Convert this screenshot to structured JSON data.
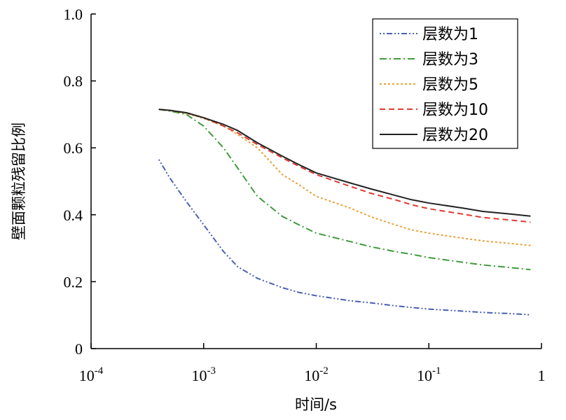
{
  "chart_data": {
    "type": "line",
    "xlabel": "时间/s",
    "ylabel": "壁面颗粒残留比例",
    "xscale": "log",
    "xlim": [
      0.0001,
      1
    ],
    "ylim": [
      0,
      1.0
    ],
    "grid": false,
    "legend_position": "top-right",
    "x_ticks": [
      {
        "base": "10",
        "exp": "-4"
      },
      {
        "base": "10",
        "exp": "-3"
      },
      {
        "base": "10",
        "exp": "-2"
      },
      {
        "base": "10",
        "exp": "-1"
      },
      {
        "base": "1",
        "exp": ""
      }
    ],
    "y_ticks": [
      "0",
      "0.2",
      "0.4",
      "0.6",
      "0.8",
      "1.0"
    ],
    "y_tick_values": [
      0,
      0.2,
      0.4,
      0.6,
      0.8,
      1.0
    ],
    "x": [
      0.0004,
      0.0005,
      0.0007,
      0.001,
      0.0015,
      0.002,
      0.003,
      0.005,
      0.007,
      0.01,
      0.02,
      0.03,
      0.05,
      0.07,
      0.1,
      0.2,
      0.3,
      0.5,
      0.8
    ],
    "series": [
      {
        "name": "层数为1",
        "color": "#4a5fb5",
        "dash": "2,3,2,3,8,3",
        "values": [
          0.565,
          0.51,
          0.44,
          0.37,
          0.29,
          0.245,
          0.21,
          0.182,
          0.168,
          0.158,
          0.143,
          0.137,
          0.128,
          0.123,
          0.118,
          0.112,
          0.108,
          0.105,
          0.101
        ]
      },
      {
        "name": "层数为3",
        "color": "#3f9a3c",
        "dash": "10,4,2,4",
        "values": [
          0.715,
          0.71,
          0.7,
          0.665,
          0.6,
          0.54,
          0.455,
          0.395,
          0.37,
          0.345,
          0.32,
          0.305,
          0.29,
          0.282,
          0.272,
          0.258,
          0.25,
          0.243,
          0.236
        ]
      },
      {
        "name": "层数为5",
        "color": "#e8a23a",
        "dash": "3,3",
        "values": [
          0.715,
          0.712,
          0.703,
          0.688,
          0.665,
          0.64,
          0.6,
          0.52,
          0.49,
          0.455,
          0.42,
          0.395,
          0.37,
          0.355,
          0.345,
          0.33,
          0.322,
          0.315,
          0.308
        ]
      },
      {
        "name": "层数为10",
        "color": "#e03a32",
        "dash": "8,5",
        "values": [
          0.715,
          0.712,
          0.705,
          0.69,
          0.665,
          0.645,
          0.61,
          0.57,
          0.545,
          0.52,
          0.485,
          0.465,
          0.445,
          0.43,
          0.418,
          0.402,
          0.392,
          0.385,
          0.378
        ]
      },
      {
        "name": "层数为20",
        "color": "#222222",
        "dash": "",
        "values": [
          0.715,
          0.712,
          0.705,
          0.69,
          0.67,
          0.652,
          0.615,
          0.575,
          0.55,
          0.525,
          0.495,
          0.478,
          0.458,
          0.445,
          0.435,
          0.42,
          0.41,
          0.403,
          0.396
        ]
      }
    ]
  }
}
